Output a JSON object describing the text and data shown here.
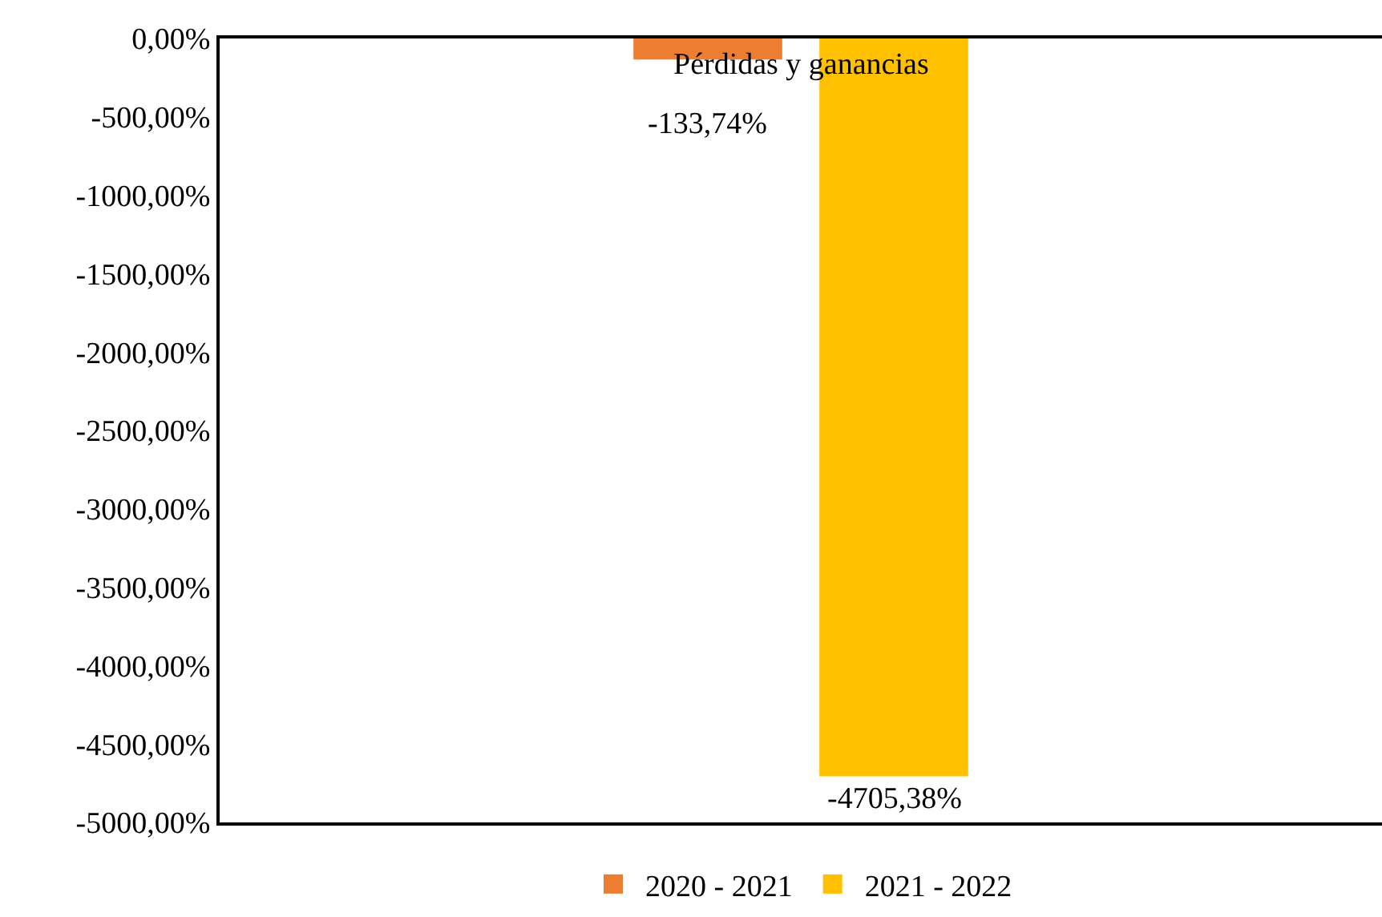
{
  "chart_data": {
    "type": "bar",
    "categories": [
      "Pérdidas y ganancias"
    ],
    "series": [
      {
        "name": "2020 - 2021",
        "color": "#ed7d31",
        "values": [
          -133.74
        ],
        "value_labels": [
          "-133,74%"
        ]
      },
      {
        "name": "2021 - 2022",
        "color": "#ffc000",
        "values": [
          -4705.38
        ],
        "value_labels": [
          "-4705,38%"
        ]
      }
    ],
    "ylim": [
      -5000,
      0
    ],
    "yticks": [
      {
        "value": 0,
        "label": "0,00%"
      },
      {
        "value": -500,
        "label": "-500,00%"
      },
      {
        "value": -1000,
        "label": "-1000,00%"
      },
      {
        "value": -1500,
        "label": "-1500,00%"
      },
      {
        "value": -2000,
        "label": "-2000,00%"
      },
      {
        "value": -2500,
        "label": "-2500,00%"
      },
      {
        "value": -3000,
        "label": "-3000,00%"
      },
      {
        "value": -3500,
        "label": "-3500,00%"
      },
      {
        "value": -4000,
        "label": "-4000,00%"
      },
      {
        "value": -4500,
        "label": "-4500,00%"
      },
      {
        "value": -5000,
        "label": "-5000,00%"
      }
    ],
    "grid": false,
    "legend": "bottom"
  }
}
